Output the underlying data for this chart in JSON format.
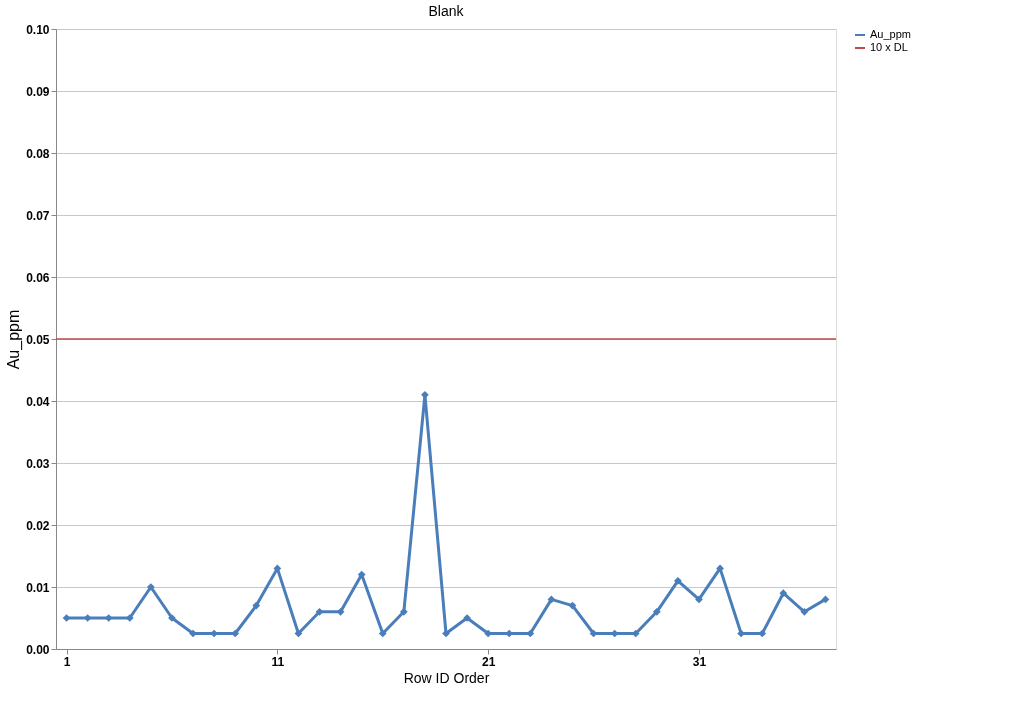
{
  "chart_data": {
    "type": "line",
    "title": "Blank",
    "xlabel": "Row ID Order",
    "ylabel": "Au_ppm",
    "x": [
      1,
      2,
      3,
      4,
      5,
      6,
      7,
      8,
      9,
      10,
      11,
      12,
      13,
      14,
      15,
      16,
      17,
      18,
      19,
      20,
      21,
      22,
      23,
      24,
      25,
      26,
      27,
      28,
      29,
      30,
      31,
      32,
      33,
      34,
      35,
      36,
      37
    ],
    "series": [
      {
        "name": "Au_ppm",
        "color": "#4a7ebb",
        "values": [
          0.005,
          0.005,
          0.005,
          0.005,
          0.01,
          0.005,
          0.0025,
          0.0025,
          0.0025,
          0.007,
          0.013,
          0.0025,
          0.006,
          0.006,
          0.012,
          0.0025,
          0.006,
          0.041,
          0.0025,
          0.005,
          0.0025,
          0.0025,
          0.0025,
          0.008,
          0.007,
          0.0025,
          0.0025,
          0.0025,
          0.006,
          0.011,
          0.008,
          0.013,
          0.0025,
          0.0025,
          0.009,
          0.006,
          0.008
        ]
      }
    ],
    "ref_lines": [
      {
        "axis": "y",
        "value": 0.05,
        "label": "10 x DL",
        "color": "#be4b48"
      }
    ],
    "xlim": [
      0.5,
      37.5
    ],
    "xticks": [
      1,
      11,
      21,
      31
    ],
    "ylim": [
      0,
      0.1
    ],
    "yticks": [
      {
        "value": 0,
        "label": "0.00"
      },
      {
        "value": 0.01,
        "label": "0.01"
      },
      {
        "value": 0.02,
        "label": "0.02"
      },
      {
        "value": 0.03,
        "label": "0.03"
      },
      {
        "value": 0.04,
        "label": "0.04"
      },
      {
        "value": 0.05,
        "label": "0.05"
      },
      {
        "value": 0.06,
        "label": "0.06"
      },
      {
        "value": 0.07,
        "label": "0.07"
      },
      {
        "value": 0.08,
        "label": "0.08"
      },
      {
        "value": 0.09,
        "label": "0.09"
      },
      {
        "value": 0.1,
        "label": "0.10"
      }
    ],
    "grid": "y",
    "legend": "right",
    "marker": "diamond",
    "line_style": "solid"
  }
}
